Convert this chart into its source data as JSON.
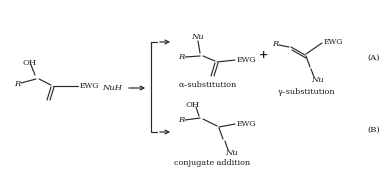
{
  "fig_width": 3.88,
  "fig_height": 1.75,
  "dpi": 100,
  "bg_color": "#ffffff",
  "line_color": "#2a2a2a",
  "text_color": "#1a1a1a",
  "font_size": 6.0,
  "label_font_size": 5.8,
  "NuH_text": "NuH",
  "plus_text": "+",
  "A_label": "(A)",
  "B_label": "(B)",
  "alpha_label": "α–substitution",
  "gamma_label": "γ–substitution",
  "conj_label": "conjugate addition"
}
